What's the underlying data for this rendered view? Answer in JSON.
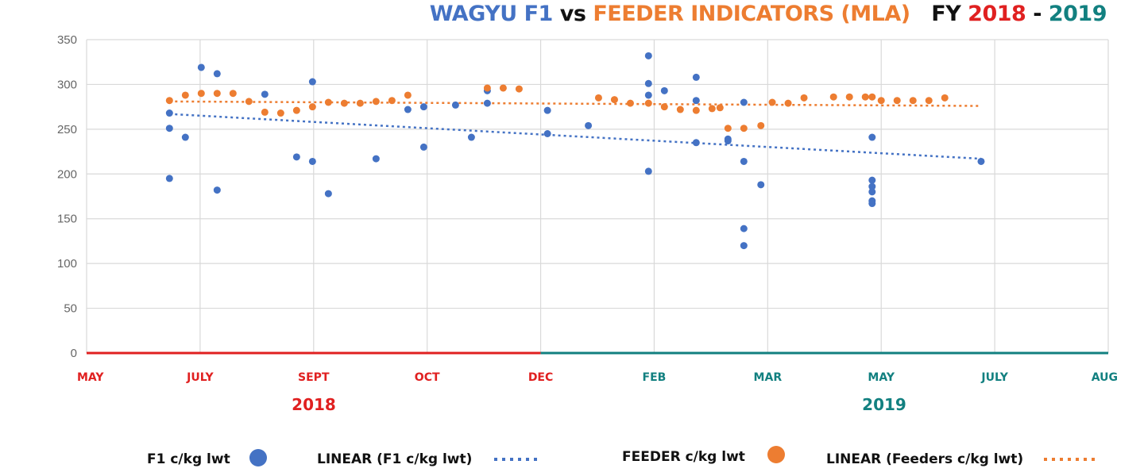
{
  "title": {
    "part1": "WAGYU F1",
    "part2": " vs ",
    "part3": "FEEDER INDICATORS (MLA)",
    "part4": "FY ",
    "part5": "2018",
    "part6": " - ",
    "part7": "2019"
  },
  "colors": {
    "blue": "#4472c4",
    "orange": "#ed7d31",
    "red": "#e02020",
    "teal": "#128080",
    "black": "#111111",
    "grid": "#d9d9d9",
    "tick_text": "#666666"
  },
  "years": {
    "left": "2018",
    "right": "2019"
  },
  "legend": {
    "f1": "F1 c/kg lwt",
    "f1_linear": "LINEAR (F1 c/kg lwt)",
    "feeder": "FEEDER c/kg lwt",
    "feeder_linear": "LINEAR (Feeders c/kg lwt)"
  },
  "chart_data": {
    "type": "scatter",
    "title": "WAGYU F1 vs FEEDER INDICATORS (MLA) FY 2018 - 2019",
    "ylim": [
      0,
      350
    ],
    "yticks": [
      0,
      50,
      100,
      150,
      200,
      250,
      300,
      350
    ],
    "xlim": [
      0,
      9
    ],
    "x_categories": [
      "MAY",
      "JULY",
      "SEPT",
      "OCT",
      "DEC",
      "FEB",
      "MAR",
      "MAY",
      "JULY",
      "AUG"
    ],
    "year_split_index": 4,
    "grid": true,
    "legend_position": "bottom",
    "series": [
      {
        "name": "F1 c/kg lwt",
        "color": "#4472c4",
        "x": [
          0.73,
          0.73,
          0.73,
          0.87,
          1.01,
          1.15,
          1.15,
          1.57,
          1.85,
          1.99,
          1.99,
          2.13,
          2.55,
          2.83,
          2.97,
          2.97,
          3.25,
          3.39,
          3.53,
          3.53,
          4.06,
          4.06,
          4.42,
          4.95,
          4.95,
          4.95,
          4.95,
          5.09,
          5.37,
          5.37,
          5.37,
          5.65,
          5.65,
          5.79,
          5.79,
          5.79,
          5.79,
          5.94,
          6.92,
          6.92,
          6.92,
          6.92,
          6.92,
          6.92,
          7.88
        ],
        "y": [
          268,
          251,
          195,
          241,
          319,
          312,
          182,
          289,
          219,
          303,
          214,
          178,
          217,
          272,
          275,
          230,
          277,
          241,
          279,
          293,
          271,
          245,
          254,
          288,
          332,
          301,
          203,
          293,
          308,
          282,
          235,
          239,
          237,
          280,
          139,
          120,
          214,
          188,
          241,
          193,
          180,
          170,
          167,
          186,
          214
        ]
      },
      {
        "name": "FEEDER c/kg lwt",
        "color": "#ed7d31",
        "x": [
          0.73,
          0.87,
          1.01,
          1.15,
          1.29,
          1.43,
          1.57,
          1.71,
          1.85,
          1.99,
          2.13,
          2.27,
          2.41,
          2.55,
          2.69,
          2.83,
          3.53,
          3.67,
          3.81,
          4.51,
          4.65,
          4.79,
          4.95,
          5.09,
          5.23,
          5.37,
          5.51,
          5.58,
          5.65,
          5.79,
          5.94,
          6.04,
          6.18,
          6.32,
          6.58,
          6.72,
          6.86,
          7.0,
          7.14,
          7.28,
          7.42,
          7.56,
          6.92
        ],
        "y": [
          282,
          288,
          290,
          290,
          290,
          281,
          269,
          268,
          271,
          275,
          280,
          279,
          279,
          281,
          282,
          288,
          296,
          296,
          295,
          285,
          283,
          279,
          279,
          275,
          272,
          271,
          273,
          274,
          251,
          251,
          254,
          280,
          279,
          285,
          286,
          286,
          286,
          282,
          282,
          282,
          282,
          285,
          286
        ]
      },
      {
        "name": "LINEAR (F1 c/kg lwt)",
        "type": "trendline",
        "color": "#4472c4",
        "x": [
          0.73,
          7.88
        ],
        "y": [
          267,
          217
        ]
      },
      {
        "name": "LINEAR (Feeders c/kg lwt)",
        "type": "trendline",
        "color": "#ed7d31",
        "x": [
          0.73,
          7.88
        ],
        "y": [
          281,
          276
        ]
      }
    ]
  }
}
